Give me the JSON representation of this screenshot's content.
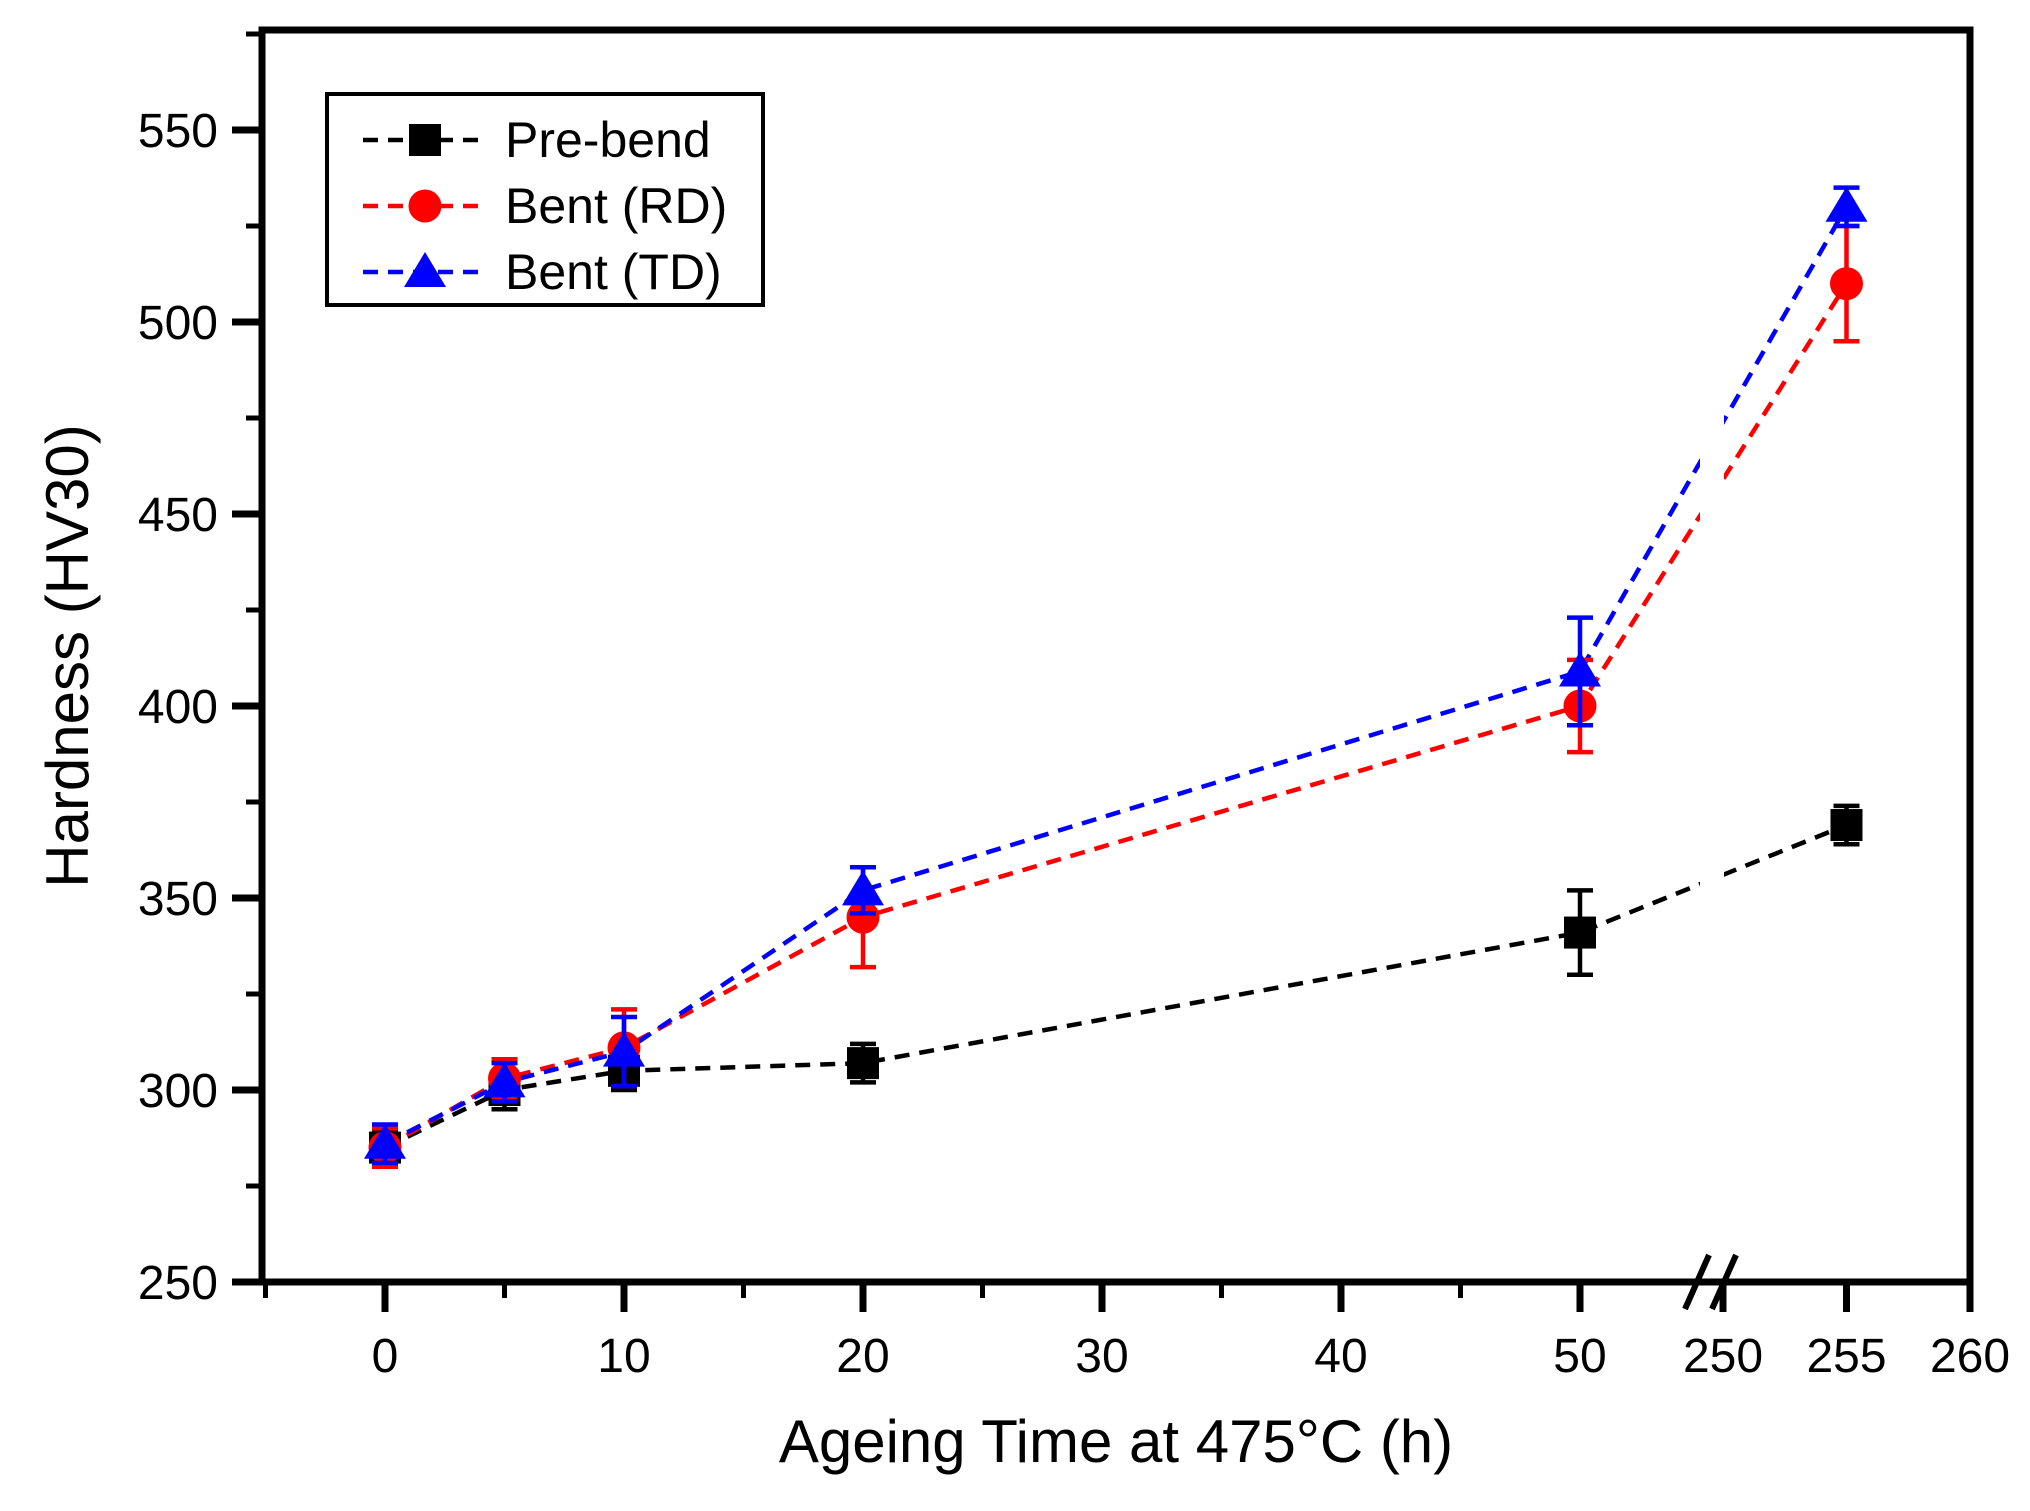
{
  "figure": {
    "background": "#ffffff",
    "frame_color": "#000000"
  },
  "chart_data": {
    "type": "line",
    "title": "",
    "xlabel": "Ageing Time at 475°C (h)",
    "ylabel": "Hardness (HV30)",
    "x": [
      0,
      5,
      10,
      20,
      50,
      255
    ],
    "series": [
      {
        "name": "Pre-bend",
        "color": "#000000",
        "marker": "square",
        "linestyle": "dashed",
        "values": [
          285,
          300,
          305,
          307,
          341,
          369
        ],
        "errors": [
          4,
          5,
          5,
          5,
          11,
          5
        ]
      },
      {
        "name": "Bent (RD)",
        "color": "#ff0000",
        "marker": "circle",
        "linestyle": "dashed",
        "values": [
          285,
          303,
          311,
          345,
          400,
          510
        ],
        "errors": [
          5,
          5,
          10,
          13,
          12,
          15
        ]
      },
      {
        "name": "Bent (TD)",
        "color": "#0000ff",
        "marker": "triangle",
        "linestyle": "dashed",
        "values": [
          286,
          302,
          310,
          352,
          409,
          530
        ],
        "errors": [
          5,
          5,
          9,
          6,
          14,
          5
        ]
      }
    ],
    "x_ticks_major": [
      0,
      10,
      20,
      30,
      40,
      50,
      250,
      255,
      260
    ],
    "x_ticks_minor": [
      -5,
      5,
      15,
      25,
      35,
      45
    ],
    "y_ticks_major": [
      250,
      300,
      350,
      400,
      450,
      500,
      550
    ],
    "y_ticks_minor": [
      275,
      325,
      375,
      425,
      475,
      525,
      575
    ],
    "ylim": [
      250,
      576
    ],
    "xlim": [
      -5,
      260
    ],
    "axis_break": {
      "between": [
        50,
        250
      ],
      "symbol": "//"
    },
    "grid": false,
    "legend_position": "top-left",
    "legend_entries": [
      "Pre-bend",
      "Bent (RD)",
      "Bent (TD)"
    ]
  }
}
